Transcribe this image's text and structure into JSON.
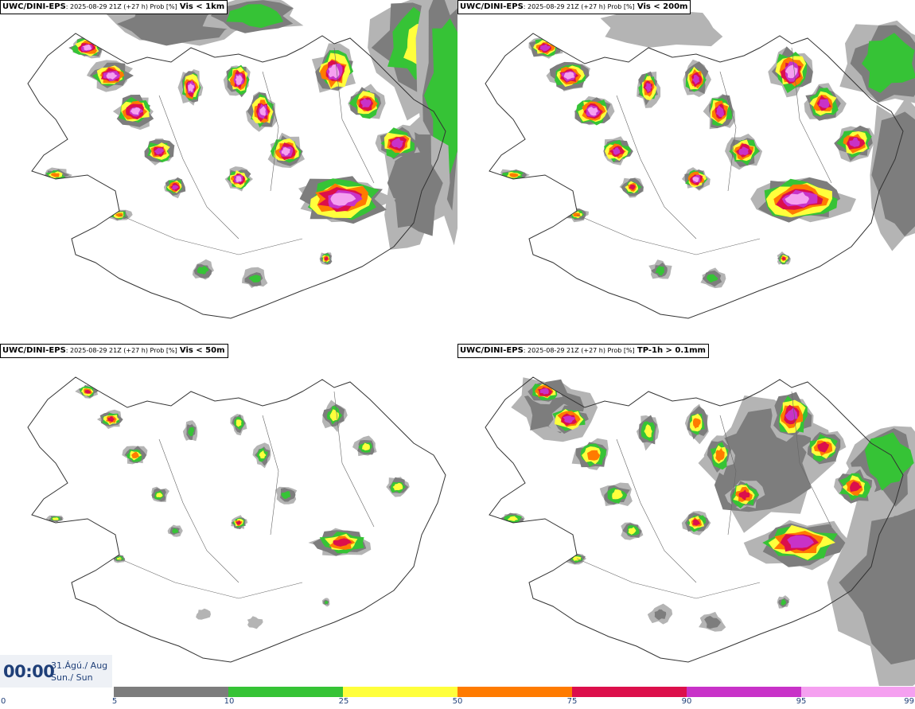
{
  "colors": {
    "p5": "#b4b4b4",
    "p10": "#7d7d7d",
    "p25": "#36c336",
    "p50": "#ffff3c",
    "p75": "#ff7b00",
    "p90": "#dc0f4b",
    "p95": "#c832c8",
    "p99": "#f5a0f0",
    "coast": "#333333",
    "text_dark": "#1f3f78"
  },
  "panels": [
    {
      "source": "UWC/DINI-EPS",
      "meta": ": 2025-08-29 21Z (+27 h) Prob [%]",
      "field": "Vis < 1km"
    },
    {
      "source": "UWC/DINI-EPS",
      "meta": ": 2025-08-29 21Z (+27 h) Prob [%]",
      "field": "Vis < 200m"
    },
    {
      "source": "UWC/DINI-EPS",
      "meta": ": 2025-08-29 21Z (+27 h) Prob [%]",
      "field": "Vis < 50m"
    },
    {
      "source": "UWC/DINI-EPS",
      "meta": ": 2025-08-29 21Z (+27 h) Prob [%]",
      "field": "TP-1h > 0.1mm"
    }
  ],
  "valid_time": {
    "time": "00:00",
    "date": "31.Ágú./ Aug",
    "weekday": "Sun./ Sun"
  },
  "legend": {
    "ticks": [
      "0",
      "5",
      "10",
      "25",
      "50",
      "75",
      "90",
      "95",
      "99"
    ]
  }
}
